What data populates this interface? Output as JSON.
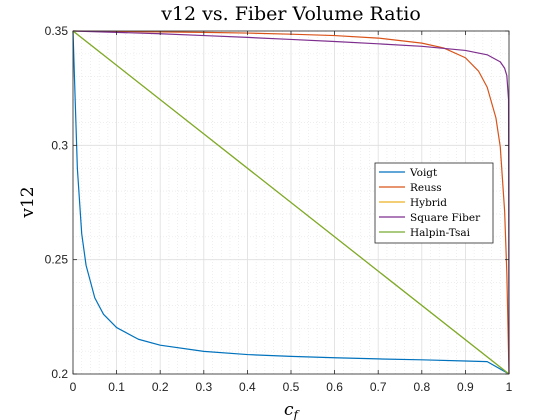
{
  "chart_data": {
    "type": "line",
    "title": "v12 vs. Fiber Volume Ratio",
    "xlabel": "c",
    "xlabel_sub": "f",
    "ylabel": "v12",
    "xlim": [
      0,
      1
    ],
    "ylim": [
      0.2,
      0.35
    ],
    "xticks": [
      "0",
      "0.1",
      "0.2",
      "0.3",
      "0.4",
      "0.5",
      "0.6",
      "0.7",
      "0.8",
      "0.9",
      "1"
    ],
    "yticks": [
      "0.2",
      "0.25",
      "0.3",
      "0.35"
    ],
    "grid": true,
    "minor_grid": true,
    "legend_position": "right",
    "series": [
      {
        "name": "Voigt",
        "color": "#0072BD",
        "x": [
          0,
          0.01,
          0.02,
          0.03,
          0.05,
          0.07,
          0.1,
          0.15,
          0.2,
          0.3,
          0.4,
          0.5,
          0.6,
          0.7,
          0.8,
          0.9,
          0.95,
          1.0
        ],
        "y": [
          0.35,
          0.2899,
          0.2613,
          0.2475,
          0.2333,
          0.2261,
          0.2203,
          0.2152,
          0.2126,
          0.2099,
          0.2085,
          0.2077,
          0.2071,
          0.2066,
          0.2062,
          0.2057,
          0.2054,
          0.2
        ]
      },
      {
        "name": "Reuss",
        "color": "#D95319",
        "x": [
          0,
          0.1,
          0.2,
          0.3,
          0.4,
          0.5,
          0.6,
          0.7,
          0.8,
          0.85,
          0.9,
          0.93,
          0.95,
          0.97,
          0.98,
          0.99,
          0.995,
          1.0
        ],
        "y": [
          0.35,
          0.3498,
          0.3496,
          0.3494,
          0.3491,
          0.3486,
          0.348,
          0.3469,
          0.3447,
          0.3426,
          0.3383,
          0.3325,
          0.3254,
          0.312,
          0.2993,
          0.2711,
          0.2442,
          0.2
        ]
      },
      {
        "name": "Hybrid",
        "color": "#EDB120",
        "x": [
          0,
          1
        ],
        "y": [
          0.35,
          0.2
        ]
      },
      {
        "name": "Square Fiber",
        "color": "#7E2F8E",
        "x": [
          0,
          0.1,
          0.2,
          0.3,
          0.4,
          0.5,
          0.6,
          0.7,
          0.8,
          0.9,
          0.95,
          0.98,
          0.99,
          0.995,
          0.999,
          1.0
        ],
        "y": [
          0.35,
          0.3494,
          0.3488,
          0.348,
          0.3472,
          0.3463,
          0.3454,
          0.3444,
          0.3433,
          0.3415,
          0.3396,
          0.3365,
          0.3337,
          0.3305,
          0.32,
          0.2
        ]
      },
      {
        "name": "Halpin-Tsai",
        "color": "#77AC30",
        "x": [
          0,
          1
        ],
        "y": [
          0.35,
          0.2
        ]
      }
    ]
  }
}
